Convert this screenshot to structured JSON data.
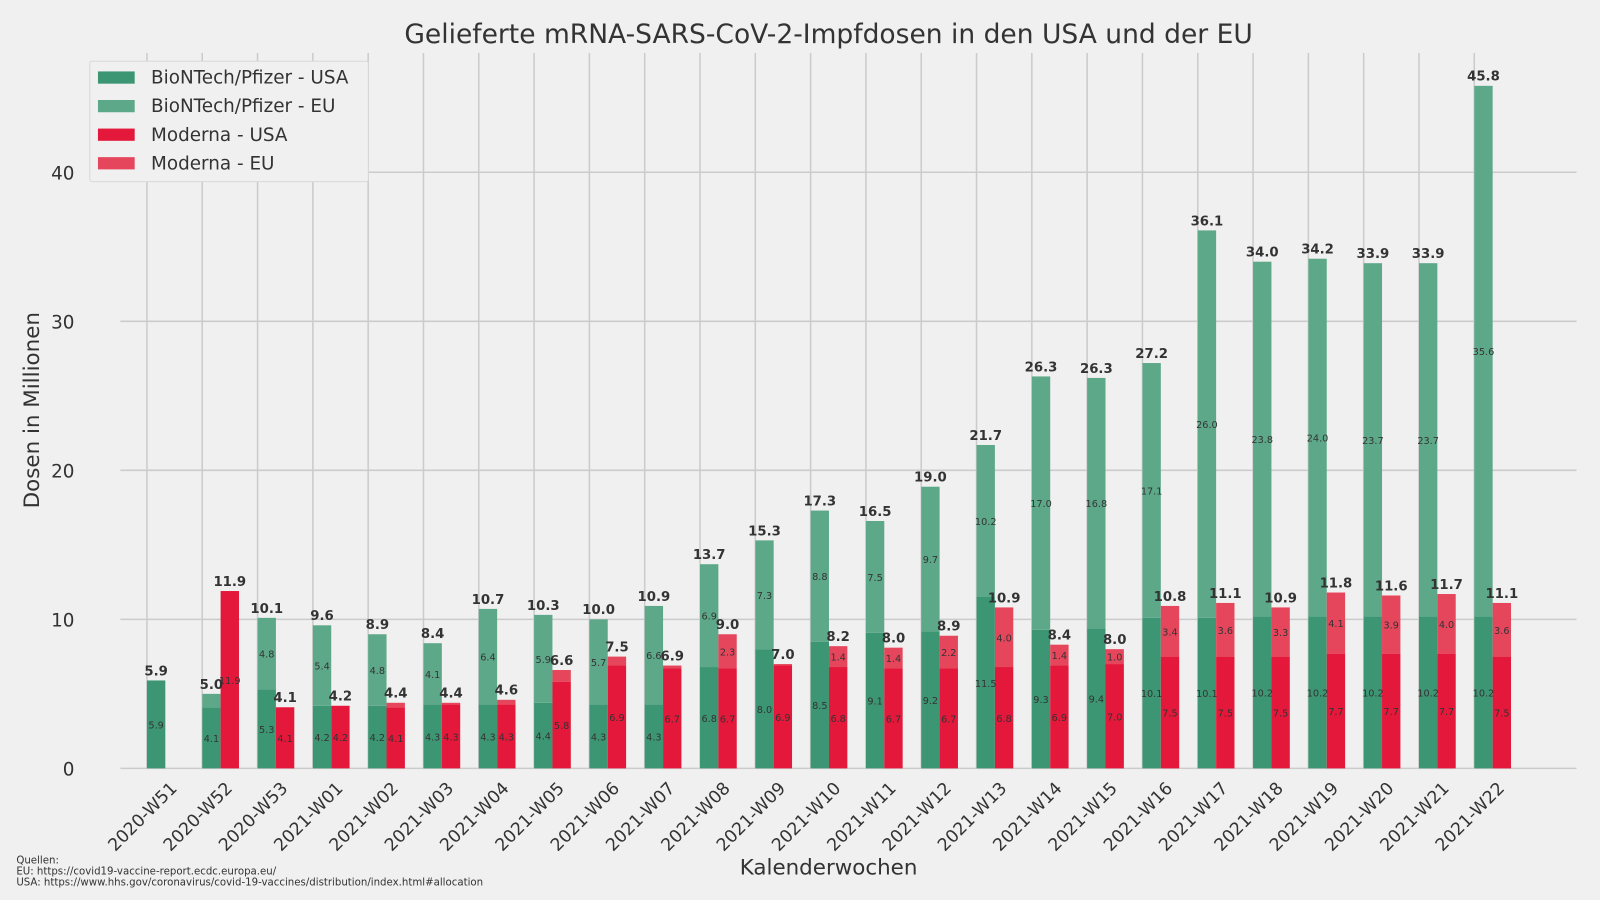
{
  "chart_data": {
    "type": "bar",
    "stacked_grouped": true,
    "title": "Gelieferte mRNA-SARS-CoV-2-Impfdosen in den USA und der EU",
    "xlabel": "Kalenderwochen",
    "ylabel": "Dosen in Millionen",
    "ylim": [
      0,
      48
    ],
    "yticks": [
      0,
      10,
      20,
      30,
      40
    ],
    "grid": true,
    "legend_position": "top-left",
    "categories": [
      "2020-W51",
      "2020-W52",
      "2020-W53",
      "2021-W01",
      "2021-W02",
      "2021-W03",
      "2021-W04",
      "2021-W05",
      "2021-W06",
      "2021-W07",
      "2021-W08",
      "2021-W09",
      "2021-W10",
      "2021-W11",
      "2021-W12",
      "2021-W13",
      "2021-W14",
      "2021-W15",
      "2021-W16",
      "2021-W17",
      "2021-W18",
      "2021-W19",
      "2021-W20",
      "2021-W21",
      "2021-W22"
    ],
    "series": [
      {
        "name": "BioNTech/Pfizer - USA",
        "color": "#3d9673",
        "stack": "pfizer",
        "values": [
          5.9,
          4.1,
          5.3,
          4.2,
          4.2,
          4.3,
          4.3,
          4.4,
          4.3,
          4.3,
          6.8,
          8.0,
          8.5,
          9.1,
          9.2,
          11.5,
          9.3,
          9.4,
          10.1,
          10.1,
          10.2,
          10.2,
          10.2,
          10.2,
          10.2
        ]
      },
      {
        "name": "BioNTech/Pfizer - EU",
        "color": "#5ea88a",
        "stack": "pfizer",
        "values": [
          0,
          0.9,
          4.8,
          5.4,
          4.8,
          4.1,
          6.4,
          5.9,
          5.7,
          6.6,
          6.9,
          7.3,
          8.8,
          7.5,
          9.7,
          10.2,
          17.0,
          16.8,
          17.1,
          26.0,
          23.8,
          24.0,
          23.7,
          23.7,
          35.6
        ]
      },
      {
        "name": "Moderna - USA",
        "color": "#e3183a",
        "stack": "moderna",
        "values": [
          0,
          11.9,
          4.1,
          4.2,
          4.1,
          4.3,
          4.3,
          5.8,
          6.9,
          6.7,
          6.7,
          6.9,
          6.8,
          6.7,
          6.7,
          6.8,
          6.9,
          7.0,
          7.5,
          7.5,
          7.5,
          7.7,
          7.7,
          7.7,
          7.5
        ]
      },
      {
        "name": "Moderna - EU",
        "color": "#e6465c",
        "stack": "moderna",
        "values": [
          0,
          0,
          0,
          0,
          0.3,
          0.1,
          0.3,
          0.8,
          0.6,
          0.2,
          2.3,
          0.1,
          1.4,
          1.4,
          2.2,
          4.0,
          1.4,
          1.0,
          3.4,
          3.6,
          3.3,
          4.1,
          3.9,
          4.0,
          3.6
        ]
      }
    ],
    "totals": {
      "pfizer": [
        "5.9",
        "5.0",
        "10.1",
        "9.6",
        "8.9",
        "8.4",
        "10.7",
        "10.3",
        "10.0",
        "10.9",
        "13.7",
        "15.3",
        "17.3",
        "16.5",
        "19.0",
        "21.7",
        "26.3",
        "26.3",
        "27.2",
        "36.1",
        "34.0",
        "34.2",
        "33.9",
        "33.9",
        "45.8"
      ],
      "moderna": [
        "",
        "11.9",
        "4.1",
        "4.2",
        "4.4",
        "4.4",
        "4.6",
        "6.6",
        "7.5",
        "6.9",
        "9.0",
        "7.0",
        "8.2",
        "8.0",
        "8.9",
        "10.9",
        "8.4",
        "8.0",
        "10.8",
        "11.1",
        "10.9",
        "11.8",
        "11.6",
        "11.7",
        "11.1"
      ]
    }
  },
  "sources": {
    "heading": "Quellen:",
    "eu": "EU: https://covid19-vaccine-report.ecdc.europa.eu/",
    "usa": "USA: https://www.hhs.gov/coronavirus/covid-19-vaccines/distribution/index.html#allocation"
  }
}
